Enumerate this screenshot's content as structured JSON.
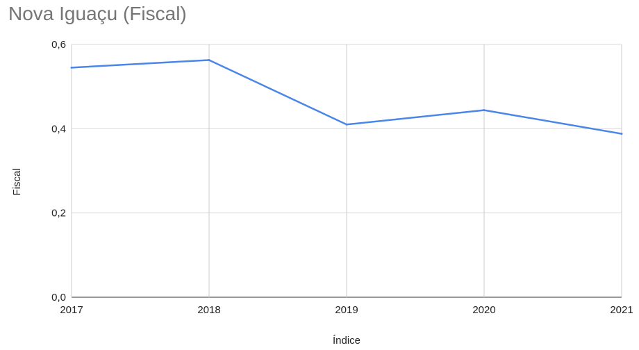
{
  "chart_data": {
    "type": "line",
    "title": "Nova Iguaçu (Fiscal)",
    "xlabel": "Índice",
    "ylabel": "Fiscal",
    "categories": [
      "2017",
      "2018",
      "2019",
      "2020",
      "2021"
    ],
    "y_ticks": [
      "0,0",
      "0,2",
      "0,4",
      "0,6"
    ],
    "ylim": [
      0,
      0.6
    ],
    "grid": true,
    "series": [
      {
        "values": [
          0.545,
          0.563,
          0.41,
          0.444,
          0.388
        ],
        "color": "#4a86e8"
      }
    ]
  }
}
